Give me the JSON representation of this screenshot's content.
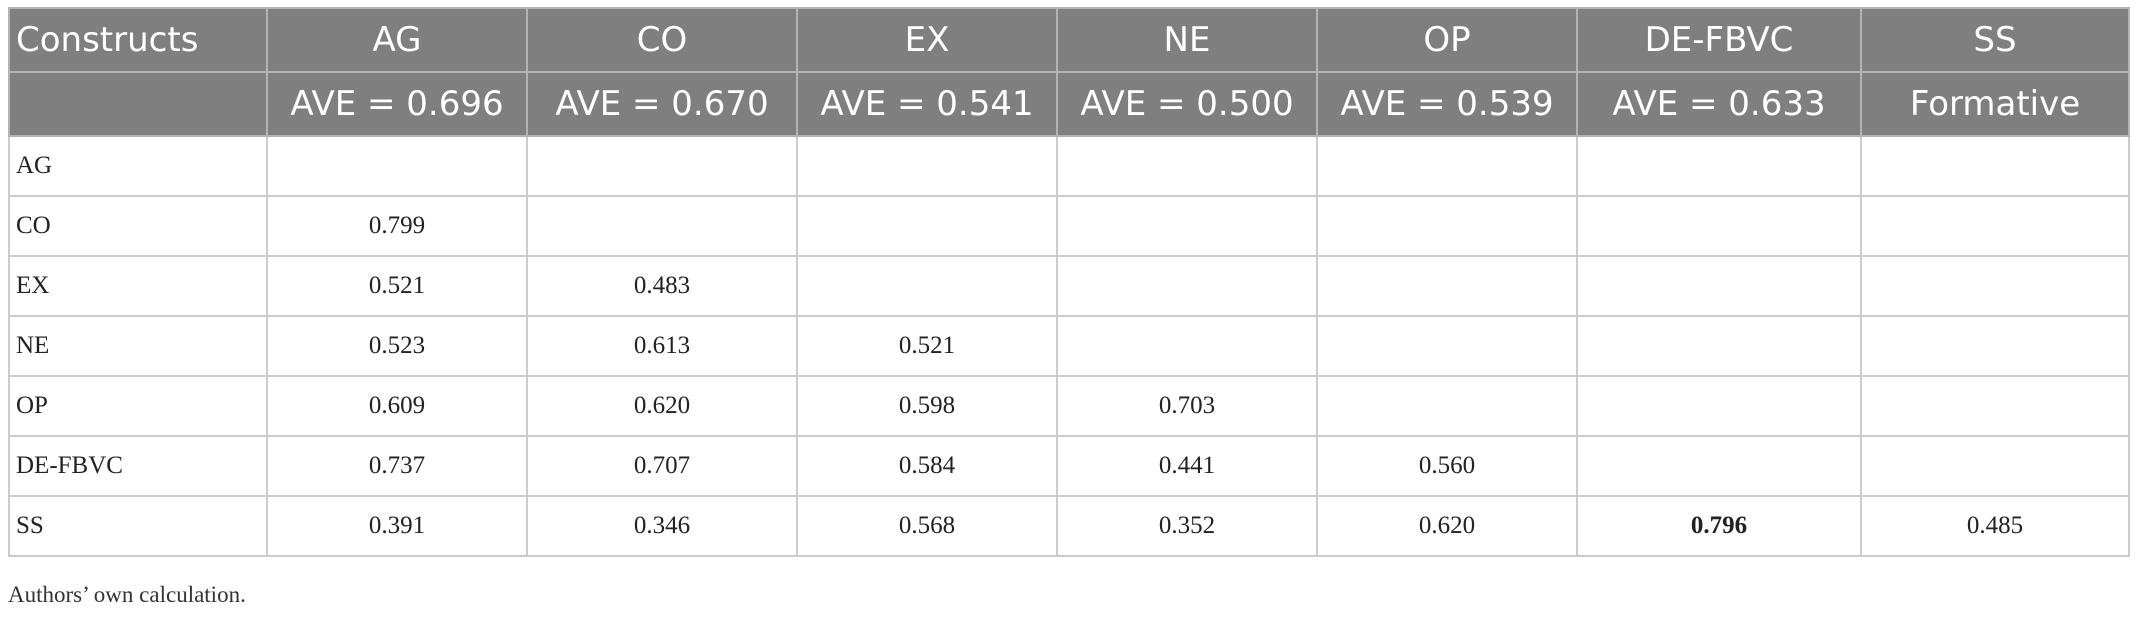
{
  "table": {
    "header_row1": [
      "Constructs",
      "AG",
      "CO",
      "EX",
      "NE",
      "OP",
      "DE-FBVC",
      "SS"
    ],
    "header_row2": [
      "",
      "AVE = 0.696",
      "AVE = 0.670",
      "AVE = 0.541",
      "AVE = 0.500",
      "AVE = 0.539",
      "AVE = 0.633",
      "Formative"
    ],
    "rows": [
      [
        "AG",
        "",
        "",
        "",
        "",
        "",
        "",
        ""
      ],
      [
        "CO",
        "0.799",
        "",
        "",
        "",
        "",
        "",
        ""
      ],
      [
        "EX",
        "0.521",
        "0.483",
        "",
        "",
        "",
        "",
        ""
      ],
      [
        "NE",
        "0.523",
        "0.613",
        "0.521",
        "",
        "",
        "",
        ""
      ],
      [
        "OP",
        "0.609",
        "0.620",
        "0.598",
        "0.703",
        "",
        "",
        ""
      ],
      [
        "DE-FBVC",
        "0.737",
        "0.707",
        "0.584",
        "0.441",
        "0.560",
        "",
        ""
      ],
      [
        "SS",
        "0.391",
        "0.346",
        "0.568",
        "0.352",
        "0.620",
        "0.796",
        "0.485"
      ]
    ]
  },
  "note": "Authors’ own calculation.",
  "colors": {
    "header_bg": "#7f7f7f",
    "header_text": "#ffffff",
    "border": "#b3b3b3"
  }
}
